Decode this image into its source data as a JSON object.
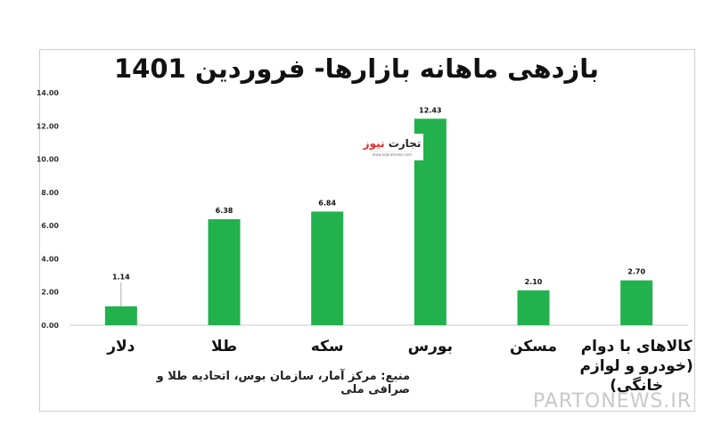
{
  "chart_data": {
    "type": "bar",
    "title": "بازدهی ماهانه بازارها- فروردین 1401",
    "categories": [
      [
        "دلار"
      ],
      [
        "طلا"
      ],
      [
        "سکه"
      ],
      [
        "بورس"
      ],
      [
        "مسکن"
      ],
      [
        "کالاهای با دوام",
        "(خودرو و لوازم",
        "خانگی)"
      ]
    ],
    "values": [
      1.14,
      6.38,
      6.84,
      12.43,
      2.1,
      2.7
    ],
    "value_labels": [
      "1.14",
      "6.38",
      "6.84",
      "12.43",
      "2.10",
      "2.70"
    ],
    "yticks": [
      "0.00",
      "2.00",
      "4.00",
      "6.00",
      "8.00",
      "10.00",
      "12.00",
      "14.00"
    ],
    "ylim": [
      0,
      14
    ],
    "bar_color": "#22b14c",
    "grid": false,
    "legend": "none"
  },
  "source_note": "منبع: مرکز آمار، سازمان بوس، اتحادیه طلا و صرافی ملی",
  "logo_text": "تجارت نیوز",
  "watermark": "PARTONEWS.IR"
}
